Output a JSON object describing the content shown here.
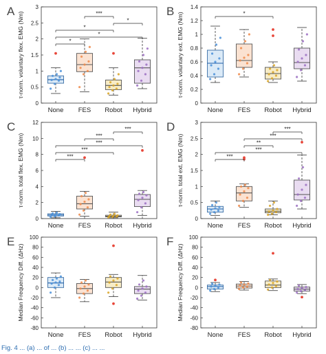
{
  "caption": "Fig. 4 ... (a) ... of ... (b) ... ... (c) ... ...",
  "chart_data": [
    {
      "type": "box",
      "letter": "A",
      "ylabel": "τ-norm. voluntary flex. EMG (Nm)",
      "ylim": [
        0,
        3
      ],
      "yticks": [
        0,
        0.5,
        1,
        1.5,
        2,
        2.5,
        3
      ],
      "categories": [
        "None",
        "FES",
        "Robot",
        "Hybrid"
      ],
      "boxes": [
        {
          "min": 0.3,
          "q1": 0.62,
          "median": 0.73,
          "q3": 0.85,
          "max": 1.1,
          "outliers": [
            1.55
          ]
        },
        {
          "min": 0.35,
          "q1": 0.98,
          "median": 1.2,
          "q3": 1.55,
          "max": 2.0,
          "outliers": []
        },
        {
          "min": 0.25,
          "q1": 0.42,
          "median": 0.55,
          "q3": 0.72,
          "max": 1.1,
          "outliers": [
            1.55
          ]
        },
        {
          "min": 0.45,
          "q1": 0.62,
          "median": 1.1,
          "q3": 1.35,
          "max": 2.02,
          "outliers": []
        }
      ],
      "points": [
        [
          0.45,
          0.6,
          0.7,
          0.72,
          0.75,
          0.8,
          0.85,
          0.9,
          1.0
        ],
        [
          0.5,
          0.9,
          1.0,
          1.1,
          1.2,
          1.3,
          1.45,
          1.6,
          1.75
        ],
        [
          0.3,
          0.4,
          0.45,
          0.5,
          0.55,
          0.6,
          0.65,
          0.75,
          0.9
        ],
        [
          0.55,
          0.7,
          0.9,
          1.0,
          1.1,
          1.2,
          1.3,
          1.5,
          1.7
        ]
      ],
      "significance": [
        {
          "from": 1,
          "to": 2,
          "label": "***"
        },
        {
          "from": 2,
          "to": 3,
          "label": "*"
        },
        {
          "from": 0,
          "to": 2,
          "label": "*"
        },
        {
          "from": 0,
          "to": 3,
          "label": "*"
        },
        {
          "from": 0,
          "to": 1,
          "label": "*"
        }
      ]
    },
    {
      "type": "box",
      "letter": "B",
      "ylabel": "τ-norm. voluntary ext. EMG (Nm)",
      "ylim": [
        0,
        1.4
      ],
      "yticks": [
        0,
        0.2,
        0.4,
        0.6,
        0.8,
        1,
        1.2,
        1.4
      ],
      "categories": [
        "None",
        "FES",
        "Robot",
        "Hybrid"
      ],
      "boxes": [
        {
          "min": 0.3,
          "q1": 0.38,
          "median": 0.58,
          "q3": 0.77,
          "max": 1.12,
          "outliers": []
        },
        {
          "min": 0.38,
          "q1": 0.52,
          "median": 0.62,
          "q3": 0.86,
          "max": 1.07,
          "outliers": []
        },
        {
          "min": 0.3,
          "q1": 0.35,
          "median": 0.43,
          "q3": 0.52,
          "max": 0.6,
          "outliers": [
            1.07,
            0.98
          ]
        },
        {
          "min": 0.32,
          "q1": 0.5,
          "median": 0.59,
          "q3": 0.8,
          "max": 1.1,
          "outliers": []
        }
      ],
      "points": [
        [
          0.35,
          0.42,
          0.5,
          0.55,
          0.6,
          0.65,
          0.72,
          0.85,
          0.95
        ],
        [
          0.42,
          0.5,
          0.58,
          0.62,
          0.66,
          0.7,
          0.8,
          0.9,
          1.0
        ],
        [
          0.32,
          0.36,
          0.4,
          0.42,
          0.45,
          0.48,
          0.5,
          0.55
        ],
        [
          0.38,
          0.48,
          0.55,
          0.6,
          0.65,
          0.7,
          0.78,
          0.9,
          1.0
        ]
      ],
      "significance": [
        {
          "from": 0,
          "to": 2,
          "label": "*"
        }
      ]
    },
    {
      "type": "box",
      "letter": "C",
      "ylabel": "τ-norm. total flex. EMG (Nm)",
      "ylim": [
        0,
        12
      ],
      "yticks": [
        0,
        2,
        4,
        6,
        8,
        10,
        12
      ],
      "categories": [
        "None",
        "FES",
        "Robot",
        "Hybrid"
      ],
      "boxes": [
        {
          "min": 0.1,
          "q1": 0.32,
          "median": 0.45,
          "q3": 0.6,
          "max": 0.9,
          "outliers": []
        },
        {
          "min": 0.3,
          "q1": 1.2,
          "median": 1.85,
          "q3": 2.8,
          "max": 3.4,
          "outliers": [
            7.6
          ]
        },
        {
          "min": 0.1,
          "q1": 0.22,
          "median": 0.3,
          "q3": 0.42,
          "max": 0.8,
          "outliers": []
        },
        {
          "min": 0.4,
          "q1": 1.5,
          "median": 2.4,
          "q3": 3.0,
          "max": 3.5,
          "outliers": [
            8.5
          ]
        }
      ],
      "points": [
        [
          0.2,
          0.3,
          0.4,
          0.45,
          0.5,
          0.55,
          0.65,
          0.75
        ],
        [
          0.5,
          1.0,
          1.4,
          1.8,
          2.1,
          2.4,
          2.8,
          3.2
        ],
        [
          0.15,
          0.2,
          0.25,
          0.3,
          0.35,
          0.4,
          0.5,
          0.6
        ],
        [
          0.8,
          1.4,
          1.9,
          2.3,
          2.6,
          2.9,
          3.1,
          3.3
        ]
      ],
      "significance": [
        {
          "from": 2,
          "to": 3,
          "label": "***"
        },
        {
          "from": 1,
          "to": 2,
          "label": "***"
        },
        {
          "from": 0,
          "to": 3,
          "label": "***"
        },
        {
          "from": 0,
          "to": 2,
          "label": "***"
        },
        {
          "from": 0,
          "to": 1,
          "label": "***"
        }
      ]
    },
    {
      "type": "box",
      "letter": "D",
      "ylabel": "τ-norm. total ext. EMG (Nm)",
      "ylim": [
        0,
        3
      ],
      "yticks": [
        0,
        0.5,
        1,
        1.5,
        2,
        2.5,
        3
      ],
      "categories": [
        "None",
        "FES",
        "Robot",
        "Hybrid"
      ],
      "boxes": [
        {
          "min": 0.1,
          "q1": 0.2,
          "median": 0.3,
          "q3": 0.38,
          "max": 0.55,
          "outliers": []
        },
        {
          "min": 0.35,
          "q1": 0.55,
          "median": 0.8,
          "q3": 1.0,
          "max": 1.08,
          "outliers": [
            1.9,
            1.85
          ]
        },
        {
          "min": 0.12,
          "q1": 0.18,
          "median": 0.23,
          "q3": 0.3,
          "max": 0.55,
          "outliers": []
        },
        {
          "min": 0.3,
          "q1": 0.58,
          "median": 0.75,
          "q3": 1.2,
          "max": 1.98,
          "outliers": [
            2.38
          ]
        }
      ],
      "points": [
        [
          0.15,
          0.2,
          0.25,
          0.28,
          0.32,
          0.36,
          0.42,
          0.5
        ],
        [
          0.4,
          0.55,
          0.65,
          0.75,
          0.85,
          0.95,
          1.0,
          1.05
        ],
        [
          0.12,
          0.15,
          0.2,
          0.22,
          0.25,
          0.3,
          0.4,
          0.5
        ],
        [
          0.4,
          0.55,
          0.65,
          0.75,
          0.9,
          1.05,
          1.25,
          1.6
        ]
      ],
      "significance": [
        {
          "from": 2,
          "to": 3,
          "label": "***"
        },
        {
          "from": 1,
          "to": 3,
          "label": "***"
        },
        {
          "from": 1,
          "to": 2,
          "label": "**"
        },
        {
          "from": 0,
          "to": 3,
          "label": "***"
        },
        {
          "from": 0,
          "to": 1,
          "label": "***"
        }
      ]
    },
    {
      "type": "box",
      "letter": "E",
      "ylabel": "Median Frequency Diff. (ΔHz)",
      "ylim": [
        -80,
        100
      ],
      "yticks": [
        -80,
        -60,
        -40,
        -20,
        0,
        20,
        40,
        60,
        80,
        100
      ],
      "categories": [
        "None",
        "FES",
        "Robot",
        "Hybrid"
      ],
      "boxes": [
        {
          "min": -20,
          "q1": 0,
          "median": 9,
          "q3": 20,
          "max": 29,
          "outliers": []
        },
        {
          "min": -28,
          "q1": -12,
          "median": -2,
          "q3": 8,
          "max": 16,
          "outliers": []
        },
        {
          "min": -18,
          "q1": 0,
          "median": 11,
          "q3": 20,
          "max": 26,
          "outliers": [
            -32,
            83
          ]
        },
        {
          "min": -25,
          "q1": -12,
          "median": -3,
          "q3": 2,
          "max": 24,
          "outliers": []
        }
      ],
      "points": [
        [
          -10,
          0,
          5,
          8,
          10,
          12,
          15,
          18,
          22
        ],
        [
          -20,
          -12,
          -6,
          -2,
          2,
          6,
          10,
          14
        ],
        [
          -10,
          -2,
          5,
          10,
          14,
          18,
          22
        ],
        [
          -22,
          -16,
          -10,
          -6,
          -2,
          2,
          6,
          14
        ]
      ],
      "significance": []
    },
    {
      "type": "box",
      "letter": "F",
      "ylabel": "Median Frequency Diff. (ΔHz)",
      "ylim": [
        -80,
        100
      ],
      "yticks": [
        -80,
        -60,
        -40,
        -20,
        0,
        20,
        40,
        60,
        80,
        100
      ],
      "categories": [
        "None",
        "FES",
        "Robot",
        "Hybrid"
      ],
      "boxes": [
        {
          "min": -8,
          "q1": -3,
          "median": 2,
          "q3": 5,
          "max": 10,
          "outliers": [
            15
          ]
        },
        {
          "min": -5,
          "q1": -1,
          "median": 3,
          "q3": 7,
          "max": 12,
          "outliers": []
        },
        {
          "min": -6,
          "q1": 0,
          "median": 5,
          "q3": 13,
          "max": 17,
          "outliers": [
            68
          ]
        },
        {
          "min": -12,
          "q1": -7,
          "median": -3,
          "q3": 1,
          "max": 6,
          "outliers": [
            -19
          ]
        }
      ],
      "points": [
        [
          -6,
          -3,
          0,
          2,
          4,
          6,
          8
        ],
        [
          -3,
          0,
          2,
          4,
          6,
          8,
          10
        ],
        [
          -4,
          0,
          3,
          6,
          9,
          12,
          15
        ],
        [
          -10,
          -7,
          -5,
          -3,
          -1,
          1,
          4
        ]
      ],
      "significance": []
    }
  ],
  "colors": {
    "None": {
      "fill": "#dbeaf7",
      "edge": "#3a6ea5",
      "point": "#4a90d9",
      "median": "#1f5fa8"
    },
    "FES": {
      "fill": "#fbe2d1",
      "edge": "#555555",
      "point": "#ef8a4a",
      "median": "#555555"
    },
    "Robot": {
      "fill": "#f7ecc6",
      "edge": "#555555",
      "point": "#d9a425",
      "median": "#555555"
    },
    "Hybrid": {
      "fill": "#e9dcf1",
      "edge": "#555555",
      "point": "#9b6ec2",
      "median": "#555555"
    },
    "outlier": "#e8473a",
    "letter": "#444444",
    "axis": "#333333"
  }
}
